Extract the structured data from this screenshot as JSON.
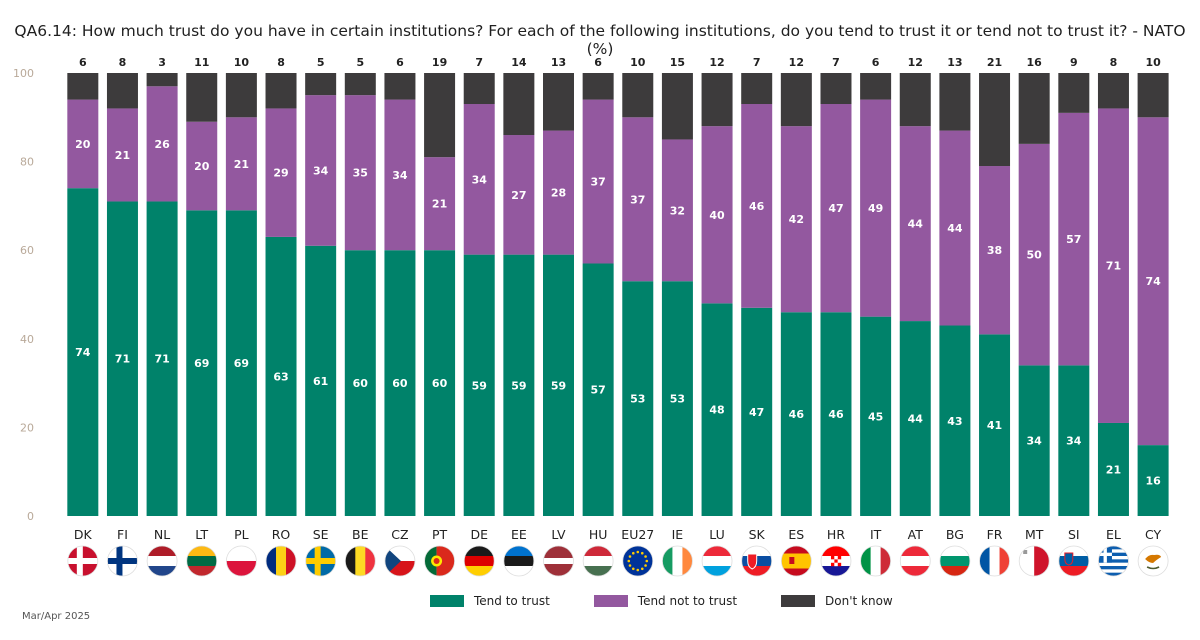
{
  "title": "QA6.14: How much trust do you have in certain institutions? For each of the following institutions, do you tend to trust it or tend not to trust it? - NATO (%)",
  "footnote": "Mar/Apr 2025",
  "colors": {
    "trust": "#00826a",
    "not_trust": "#93589f",
    "dont_know": "#3d3b3c",
    "axis_text": "#b9a999"
  },
  "chart_data": {
    "type": "bar",
    "stacked": true,
    "title": "QA6.14: How much trust do you have in certain institutions? For each of the following institutions, do you tend to trust it or tend not to trust it? - NATO (%)",
    "ylim": [
      0,
      100
    ],
    "yticks": [
      0,
      20,
      40,
      60,
      80,
      100
    ],
    "grid": false,
    "legend_position": "bottom",
    "categories": [
      "DK",
      "FI",
      "NL",
      "LT",
      "PL",
      "RO",
      "SE",
      "BE",
      "CZ",
      "PT",
      "DE",
      "EE",
      "LV",
      "HU",
      "EU27",
      "IE",
      "LU",
      "SK",
      "ES",
      "HR",
      "IT",
      "AT",
      "BG",
      "FR",
      "MT",
      "SI",
      "EL",
      "CY"
    ],
    "series": [
      {
        "name": "Tend to trust",
        "values": [
          74,
          71,
          71,
          69,
          69,
          63,
          61,
          60,
          60,
          60,
          59,
          59,
          59,
          57,
          53,
          53,
          48,
          47,
          46,
          46,
          45,
          44,
          43,
          41,
          34,
          34,
          21,
          16
        ]
      },
      {
        "name": "Tend not to trust",
        "values": [
          20,
          21,
          26,
          20,
          21,
          29,
          34,
          35,
          34,
          21,
          34,
          27,
          28,
          37,
          37,
          32,
          40,
          46,
          42,
          47,
          49,
          44,
          44,
          38,
          50,
          57,
          71,
          74
        ]
      },
      {
        "name": "Don't know",
        "values": [
          6,
          8,
          3,
          11,
          10,
          8,
          5,
          5,
          6,
          19,
          7,
          14,
          13,
          6,
          10,
          15,
          12,
          7,
          12,
          7,
          6,
          12,
          13,
          21,
          16,
          9,
          8,
          10
        ]
      }
    ]
  },
  "flag_icons": [
    "denmark-flag-icon",
    "finland-flag-icon",
    "netherlands-flag-icon",
    "lithuania-flag-icon",
    "poland-flag-icon",
    "romania-flag-icon",
    "sweden-flag-icon",
    "belgium-flag-icon",
    "czechia-flag-icon",
    "portugal-flag-icon",
    "germany-flag-icon",
    "estonia-flag-icon",
    "latvia-flag-icon",
    "hungary-flag-icon",
    "eu-flag-icon",
    "ireland-flag-icon",
    "luxembourg-flag-icon",
    "slovakia-flag-icon",
    "spain-flag-icon",
    "croatia-flag-icon",
    "italy-flag-icon",
    "austria-flag-icon",
    "bulgaria-flag-icon",
    "france-flag-icon",
    "malta-flag-icon",
    "slovenia-flag-icon",
    "greece-flag-icon",
    "cyprus-flag-icon"
  ]
}
